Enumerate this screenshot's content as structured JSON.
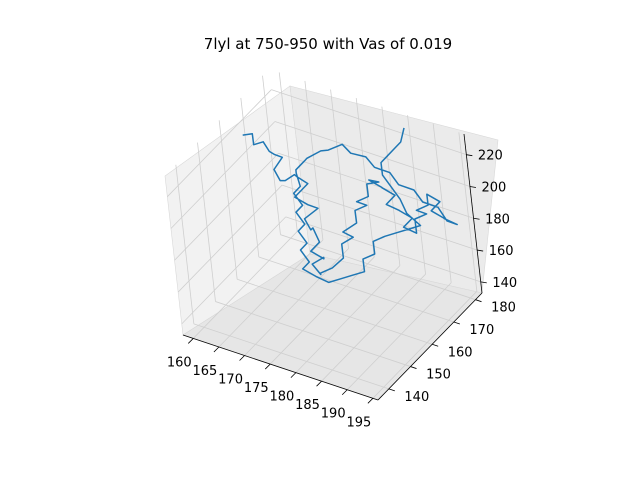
{
  "figure": {
    "title": "7lyl at 750-950 with Vas of 0.019"
  },
  "chart_data": {
    "type": "line3d",
    "title": "7lyl at 750-950 with Vas of 0.019",
    "xlabel": "",
    "ylabel": "",
    "zlabel": "",
    "grid": true,
    "xlim": [
      158,
      196
    ],
    "ylim": [
      135,
      183
    ],
    "zlim": [
      133,
      233
    ],
    "x_ticks": [
      "160",
      "165",
      "170",
      "175",
      "180",
      "185",
      "190",
      "195"
    ],
    "y_ticks": [
      "140",
      "150",
      "160",
      "170",
      "180"
    ],
    "z_ticks": [
      "140",
      "160",
      "180",
      "200",
      "220"
    ],
    "series": [
      {
        "color": "#1f77b4",
        "note_points_are_approximate": false,
        "points": [
          [
            158.5,
            168,
            213
          ],
          [
            160,
            169,
            214
          ],
          [
            161.5,
            166,
            213
          ],
          [
            163,
            167,
            215
          ],
          [
            164.5,
            166,
            212
          ],
          [
            166,
            165,
            213
          ],
          [
            167,
            166,
            211
          ],
          [
            166.5,
            163,
            207
          ],
          [
            168,
            162,
            203
          ],
          [
            169.5,
            161,
            206
          ],
          [
            171,
            162,
            210
          ],
          [
            172.5,
            160,
            213
          ],
          [
            174,
            161,
            209
          ],
          [
            173,
            157,
            205
          ],
          [
            175,
            158,
            201
          ],
          [
            176,
            160,
            197
          ],
          [
            174.5,
            157,
            193
          ],
          [
            176,
            156,
            189
          ],
          [
            175,
            159,
            185
          ],
          [
            177,
            157,
            181
          ],
          [
            176,
            155,
            177
          ],
          [
            178,
            156,
            173
          ],
          [
            177,
            158,
            170
          ],
          [
            175.5,
            156,
            167
          ],
          [
            177.5,
            155,
            164
          ],
          [
            176.5,
            157,
            161
          ],
          [
            178.5,
            158,
            165
          ],
          [
            180,
            160,
            170
          ],
          [
            179,
            162,
            175
          ],
          [
            181,
            163,
            180
          ],
          [
            180,
            161,
            185
          ],
          [
            182,
            163,
            190
          ],
          [
            181,
            165,
            194
          ],
          [
            183,
            166,
            198
          ],
          [
            182,
            164,
            202
          ],
          [
            184,
            165,
            206
          ],
          [
            183,
            167,
            210
          ],
          [
            185,
            168,
            212
          ],
          [
            184,
            166,
            215
          ],
          [
            186,
            167,
            211
          ],
          [
            185,
            169,
            207
          ],
          [
            187,
            170,
            203
          ],
          [
            186,
            168,
            199
          ],
          [
            188,
            169,
            196
          ],
          [
            187,
            171,
            192
          ],
          [
            189,
            172,
            188
          ],
          [
            188,
            170,
            184
          ],
          [
            190,
            171,
            181
          ],
          [
            189,
            173,
            186
          ],
          [
            191,
            174,
            190
          ],
          [
            190,
            172,
            194
          ],
          [
            192,
            173,
            198
          ],
          [
            191,
            175,
            201
          ],
          [
            193,
            176,
            197
          ],
          [
            192,
            174,
            193
          ],
          [
            194,
            175,
            189
          ],
          [
            193,
            177,
            185
          ],
          [
            195,
            178,
            182
          ],
          [
            194,
            176,
            186
          ],
          [
            192,
            177,
            191
          ],
          [
            190,
            175,
            195
          ],
          [
            188,
            176,
            199
          ],
          [
            186,
            174,
            203
          ],
          [
            184,
            175,
            207
          ],
          [
            182,
            173,
            211
          ],
          [
            180,
            174,
            214
          ],
          [
            178,
            172,
            217
          ],
          [
            176,
            173,
            219
          ],
          [
            174,
            171,
            216
          ],
          [
            172,
            172,
            212
          ],
          [
            170,
            170,
            208
          ],
          [
            169,
            171,
            204
          ],
          [
            168,
            169,
            200
          ],
          [
            167.5,
            170,
            196
          ],
          [
            169,
            168,
            192
          ],
          [
            168,
            167,
            188
          ],
          [
            170,
            166,
            184
          ],
          [
            169,
            165,
            180
          ],
          [
            171,
            164,
            176
          ],
          [
            170,
            163,
            172
          ],
          [
            172,
            162,
            168
          ],
          [
            171,
            161,
            164
          ],
          [
            173,
            160,
            160
          ],
          [
            172,
            159,
            156
          ],
          [
            174,
            160,
            152
          ],
          [
            176,
            161,
            149
          ],
          [
            178,
            162,
            152
          ],
          [
            180,
            163,
            155
          ],
          [
            182,
            164,
            158
          ],
          [
            181,
            166,
            162
          ],
          [
            183,
            167,
            166
          ],
          [
            182,
            169,
            170
          ],
          [
            184,
            170,
            174
          ],
          [
            186,
            171,
            177
          ],
          [
            188,
            172,
            180
          ],
          [
            190,
            173,
            183
          ],
          [
            187,
            174,
            186
          ],
          [
            185,
            176,
            190
          ],
          [
            183,
            177,
            194
          ],
          [
            181,
            178,
            198
          ],
          [
            180,
            180,
            202
          ],
          [
            181,
            181,
            206
          ],
          [
            182,
            182,
            210
          ],
          [
            183,
            183,
            214
          ],
          [
            183.5,
            184,
            222
          ]
        ]
      }
    ]
  }
}
